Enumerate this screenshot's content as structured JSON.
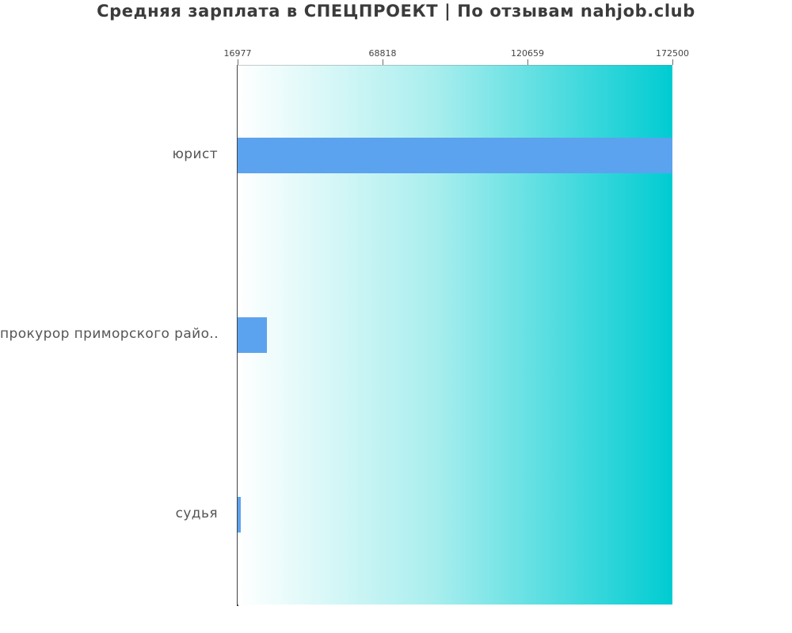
{
  "title": "Средняя зарплата в СПЕЦПРОЕКТ | По отзывам nahjob.club",
  "chart_data": {
    "type": "bar",
    "orientation": "horizontal",
    "title": "Средняя зарплата в СПЕЦПРОЕКТ | По отзывам nahjob.club",
    "categories": [
      "юрист",
      "прокурор приморского райо..",
      "судья"
    ],
    "values": [
      172500,
      27600,
      16977
    ],
    "x_ticks": [
      "16977",
      "68818",
      "120659",
      "172500"
    ],
    "xlim": [
      16977,
      172500
    ],
    "xlabel": "",
    "ylabel": "",
    "grid": false,
    "legend": false,
    "bar_color": "#5ba3ee",
    "plot_bg_gradient_start": "#ffffff",
    "plot_bg_gradient_end": "#00ccd2",
    "axis_color": "#424242",
    "tick_label_color": "#454545",
    "category_label_color": "#555555",
    "title_color": "#3b3b3b"
  }
}
